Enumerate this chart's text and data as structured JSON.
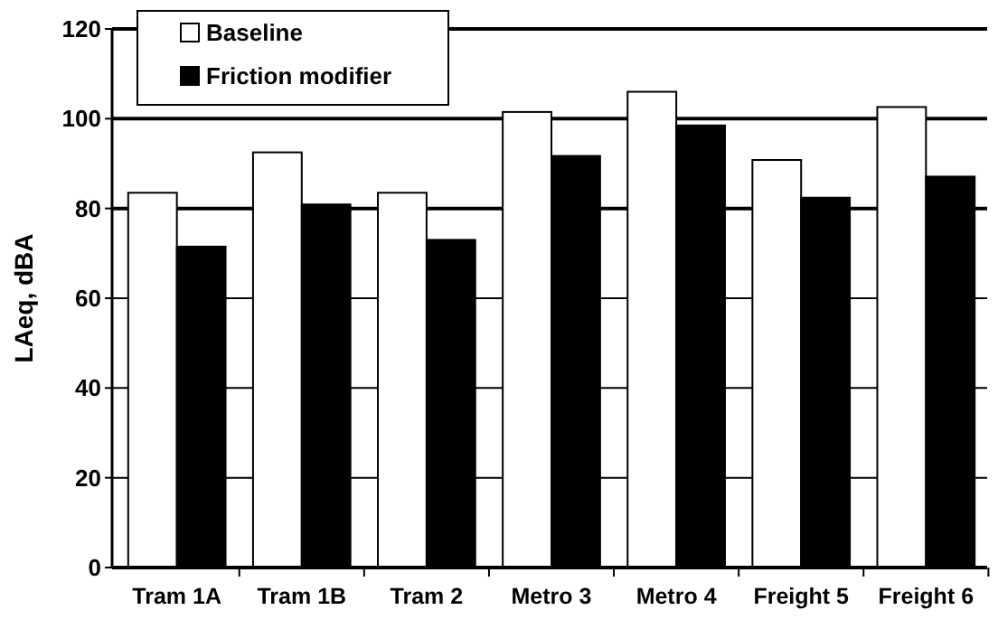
{
  "chart_data": {
    "type": "bar",
    "ylabel": "LAeq, dBA",
    "categories": [
      "Tram 1A",
      "Tram 1B",
      "Tram 2",
      "Metro 3",
      "Metro 4",
      "Freight 5",
      "Freight 6"
    ],
    "series": [
      {
        "name": "Baseline",
        "color": "#ffffff",
        "values": [
          83.5,
          92.5,
          83.5,
          101.5,
          106,
          90.8,
          102.6
        ]
      },
      {
        "name": "Friction modifier",
        "color": "#000000",
        "values": [
          71.5,
          80.9,
          73,
          91.7,
          98.5,
          82.4,
          87.1
        ]
      }
    ],
    "ylim": [
      0,
      120
    ],
    "yticks": [
      0,
      20,
      40,
      60,
      80,
      100,
      120
    ],
    "grid": "y",
    "legend": "top left"
  }
}
